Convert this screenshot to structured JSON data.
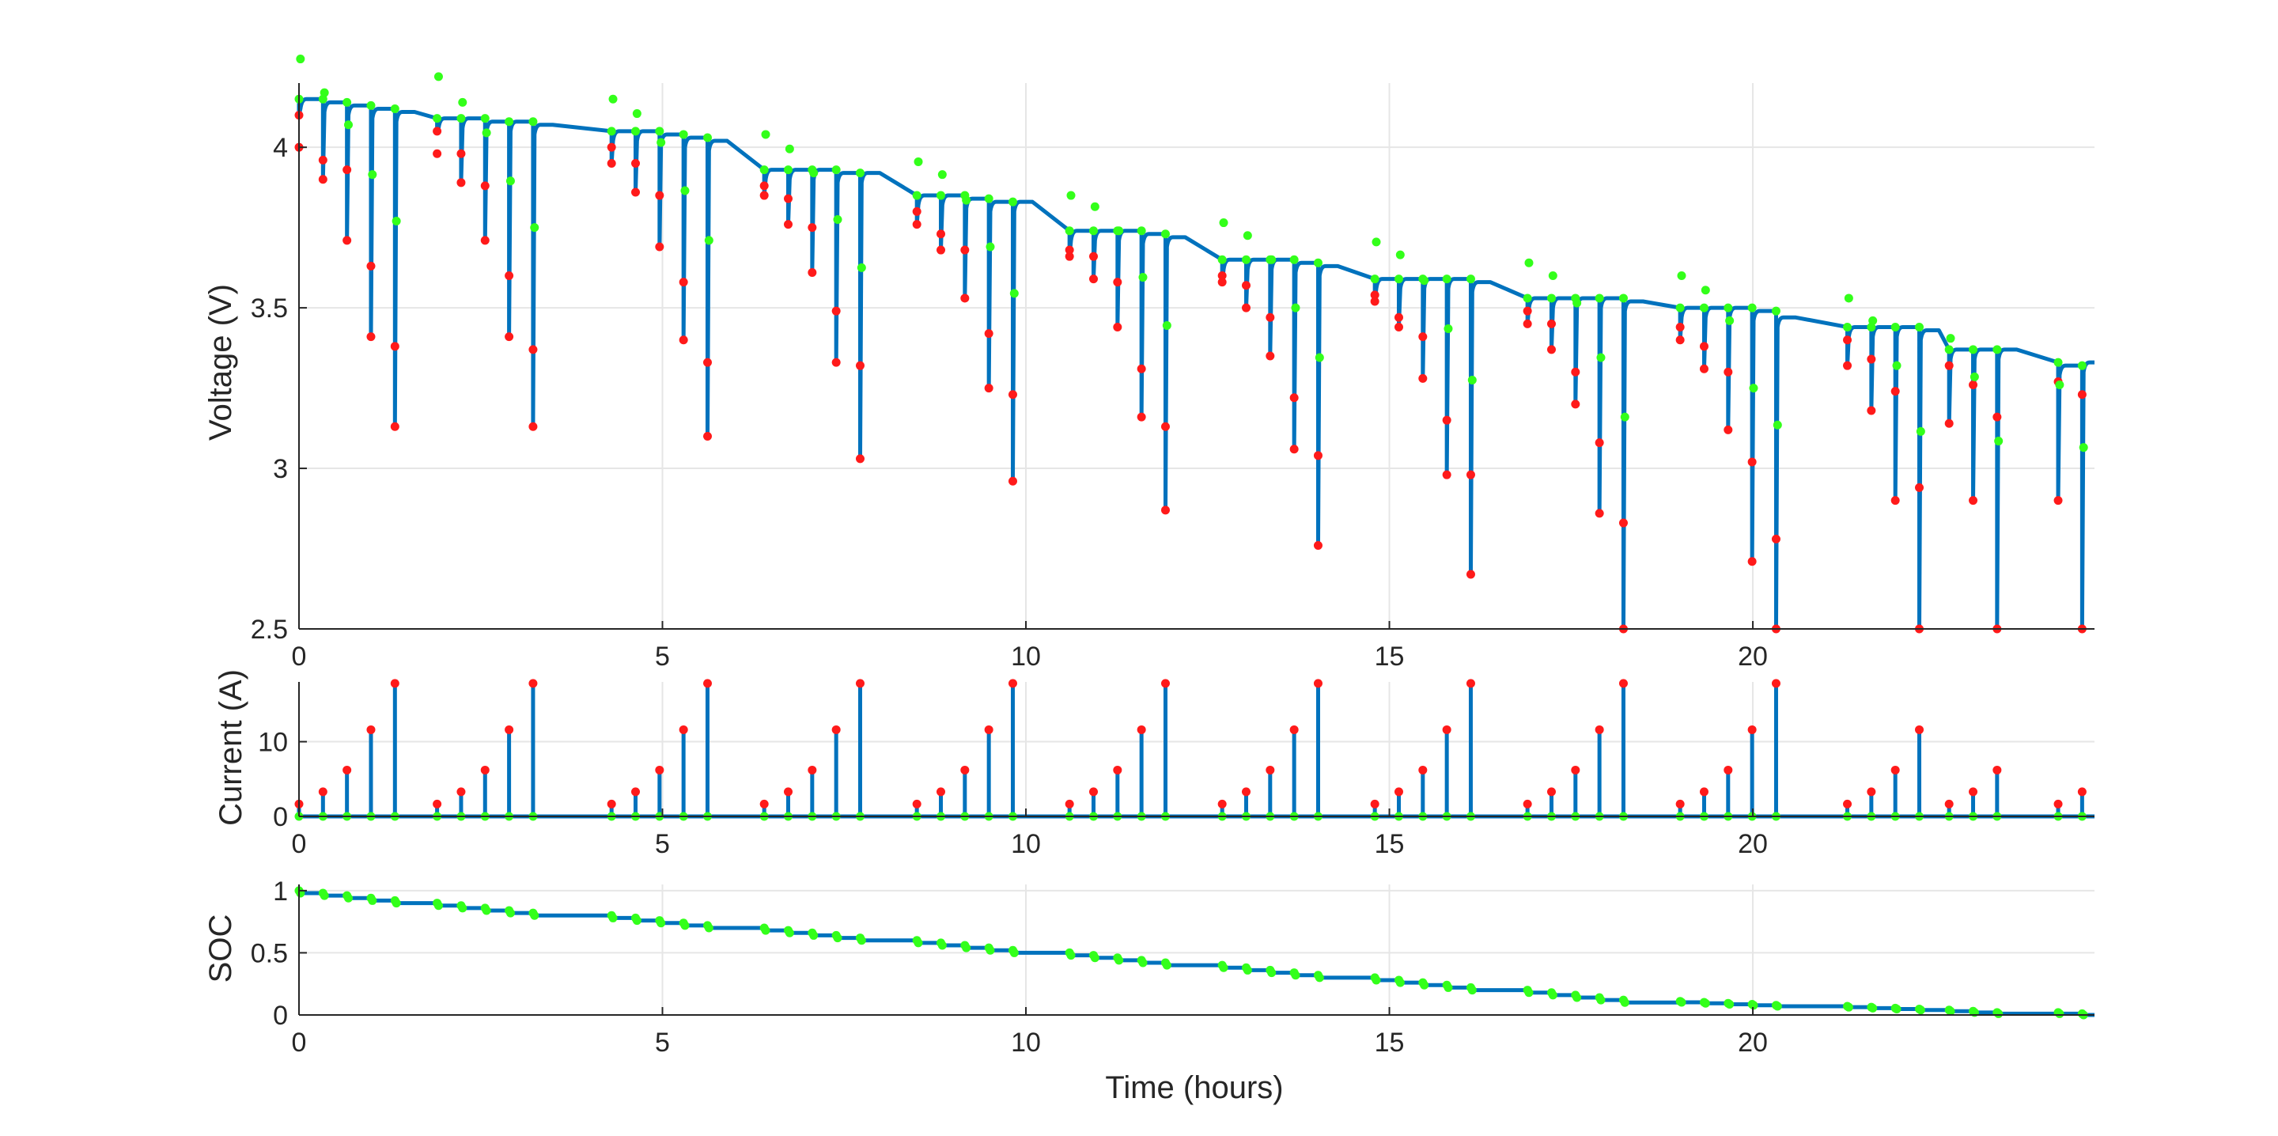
{
  "chart_data": [
    {
      "type": "line",
      "ylabel": "Voltage (V)",
      "xlabel": "",
      "xlim": [
        0,
        24.7
      ],
      "ylim": [
        2.5,
        4.2
      ],
      "xticks": [
        0,
        5,
        10,
        15,
        20
      ],
      "yticks": [
        2.5,
        3,
        3.5,
        4
      ],
      "ytick_labels": [
        "2.5",
        "3",
        "3.5",
        "4"
      ],
      "grid": true,
      "colors": {
        "line": "#0072BD",
        "pulse_marker": "#FF1A1A",
        "rest_marker": "#33FF1A",
        "grid": "#E6E6E6",
        "axis": "#262626"
      },
      "groups": [
        {
          "start": 0.0,
          "rest_v": 4.15,
          "pulse_min": [
            4.1,
            3.9,
            3.71,
            3.41,
            3.13
          ],
          "pulse_top": [
            4.0,
            3.96,
            3.93,
            3.63,
            3.38
          ],
          "recover_v": [
            4.15,
            4.14,
            4.13,
            4.12,
            4.11
          ]
        },
        {
          "start": 1.9,
          "rest_v": 4.09,
          "pulse_min": [
            4.05,
            3.89,
            3.71,
            3.41,
            3.13
          ],
          "pulse_top": [
            3.98,
            3.98,
            3.88,
            3.6,
            3.37
          ],
          "recover_v": [
            4.09,
            4.09,
            4.08,
            4.08,
            4.07
          ]
        },
        {
          "start": 4.3,
          "rest_v": 4.05,
          "pulse_min": [
            3.95,
            3.86,
            3.69,
            3.4,
            3.1
          ],
          "pulse_top": [
            4.0,
            3.95,
            3.85,
            3.58,
            3.33
          ],
          "recover_v": [
            4.05,
            4.05,
            4.04,
            4.03,
            4.02
          ]
        },
        {
          "start": 6.4,
          "rest_v": 3.93,
          "pulse_min": [
            3.85,
            3.76,
            3.61,
            3.33,
            3.03
          ],
          "pulse_top": [
            3.88,
            3.84,
            3.75,
            3.49,
            3.32
          ],
          "recover_v": [
            3.93,
            3.93,
            3.93,
            3.92,
            3.92
          ]
        },
        {
          "start": 8.5,
          "rest_v": 3.85,
          "pulse_min": [
            3.76,
            3.68,
            3.53,
            3.25,
            2.96
          ],
          "pulse_top": [
            3.8,
            3.73,
            3.68,
            3.42,
            3.23
          ],
          "recover_v": [
            3.85,
            3.85,
            3.84,
            3.83,
            3.83
          ]
        },
        {
          "start": 10.6,
          "rest_v": 3.74,
          "pulse_min": [
            3.66,
            3.59,
            3.44,
            3.16,
            2.87
          ],
          "pulse_top": [
            3.68,
            3.66,
            3.58,
            3.31,
            3.13
          ],
          "recover_v": [
            3.74,
            3.74,
            3.74,
            3.73,
            3.72
          ]
        },
        {
          "start": 12.7,
          "rest_v": 3.65,
          "pulse_min": [
            3.58,
            3.5,
            3.35,
            3.06,
            2.76
          ],
          "pulse_top": [
            3.6,
            3.57,
            3.47,
            3.22,
            3.04
          ],
          "recover_v": [
            3.65,
            3.65,
            3.65,
            3.64,
            3.63
          ]
        },
        {
          "start": 14.8,
          "rest_v": 3.59,
          "pulse_min": [
            3.52,
            3.44,
            3.28,
            2.98,
            2.67
          ],
          "pulse_top": [
            3.54,
            3.47,
            3.41,
            3.15,
            2.98
          ],
          "recover_v": [
            3.59,
            3.59,
            3.59,
            3.59,
            3.58
          ]
        },
        {
          "start": 16.9,
          "rest_v": 3.53,
          "pulse_min": [
            3.45,
            3.37,
            3.2,
            2.86,
            2.5
          ],
          "pulse_top": [
            3.49,
            3.45,
            3.3,
            3.08,
            2.83
          ],
          "recover_v": [
            3.53,
            3.53,
            3.53,
            3.53,
            3.52
          ]
        },
        {
          "start": 19.0,
          "rest_v": 3.5,
          "pulse_min": [
            3.4,
            3.31,
            3.12,
            2.71,
            2.5
          ],
          "pulse_top": [
            3.44,
            3.38,
            3.3,
            3.02,
            2.78
          ],
          "recover_v": [
            3.5,
            3.5,
            3.5,
            3.49,
            3.47
          ]
        },
        {
          "start": 21.3,
          "rest_v": 3.44,
          "pulse_min": [
            3.32,
            3.18,
            2.9,
            2.5
          ],
          "pulse_top": [
            3.4,
            3.34,
            3.24,
            2.94
          ],
          "recover_v": [
            3.44,
            3.44,
            3.44,
            3.43
          ]
        },
        {
          "start": 22.7,
          "rest_v": 3.37,
          "pulse_min": [
            3.14,
            2.9,
            2.5
          ],
          "pulse_top": [
            3.32,
            3.26,
            3.16
          ],
          "recover_v": [
            3.37,
            3.37,
            3.37
          ]
        },
        {
          "start": 24.2,
          "rest_v": 3.33,
          "pulse_min": [
            2.9,
            2.5
          ],
          "pulse_top": [
            3.27,
            3.23
          ],
          "recover_v": [
            3.32,
            3.33
          ]
        }
      ]
    },
    {
      "type": "line",
      "ylabel": "Current (A)",
      "xlabel": "",
      "xlim": [
        0,
        24.7
      ],
      "ylim": [
        0,
        18
      ],
      "xticks": [
        0,
        5,
        10,
        15,
        20
      ],
      "yticks": [
        0,
        10
      ],
      "ytick_labels": [
        "0",
        "10"
      ],
      "grid": true,
      "pulse_levels": [
        1.65,
        3.3,
        6.2,
        11.6,
        17.8
      ],
      "pulse_counts": [
        5,
        5,
        5,
        5,
        5,
        5,
        5,
        5,
        5,
        5,
        4,
        3,
        2
      ]
    },
    {
      "type": "line",
      "ylabel": "SOC",
      "xlabel": "Time (hours)",
      "xlim": [
        0,
        24.7
      ],
      "ylim": [
        0,
        1.05
      ],
      "xticks": [
        0,
        5,
        10,
        15,
        20
      ],
      "yticks": [
        0,
        0.5,
        1
      ],
      "ytick_labels": [
        "0",
        "0.5",
        "1"
      ],
      "grid": true,
      "soc_start": [
        1.0,
        0.9,
        0.8,
        0.7,
        0.6,
        0.5,
        0.4,
        0.3,
        0.2,
        0.11,
        0.07,
        0.04,
        0.02
      ],
      "soc_end": [
        0.9,
        0.8,
        0.7,
        0.6,
        0.5,
        0.4,
        0.3,
        0.2,
        0.1,
        0.07,
        0.04,
        0.01,
        0.0
      ]
    }
  ]
}
